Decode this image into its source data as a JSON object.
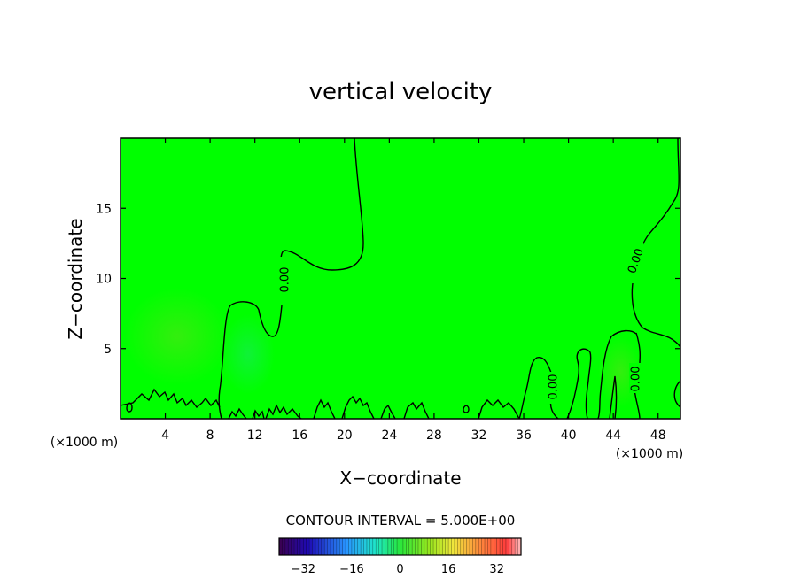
{
  "chart_data": {
    "type": "contour",
    "title": "vertical velocity",
    "xlabel": "X−coordinate",
    "ylabel": "Z−coordinate",
    "x_unit_left": "(×1000 m)",
    "x_unit_right": "(×1000 m)",
    "xlim": [
      0,
      50
    ],
    "ylim": [
      0,
      20
    ],
    "x_ticks": [
      4,
      8,
      12,
      16,
      20,
      24,
      28,
      32,
      36,
      40,
      44,
      48
    ],
    "y_ticks": [
      5,
      10,
      15
    ],
    "x_tick_labels": [
      "4",
      "8",
      "12",
      "16",
      "20",
      "24",
      "28",
      "32",
      "36",
      "40",
      "44",
      "48"
    ],
    "y_tick_labels": [
      "5",
      "10",
      "15"
    ],
    "fill_color": "#00ff00",
    "contour_level_label": "0.00",
    "contour_interval_text": "CONTOUR INTERVAL = 5.000E+00",
    "colorbar": {
      "range": [
        -40,
        40
      ],
      "ticks": [
        -32,
        -16,
        0,
        16,
        32
      ],
      "tick_labels": [
        "−32",
        "−16",
        "0",
        "16",
        "32"
      ]
    }
  }
}
